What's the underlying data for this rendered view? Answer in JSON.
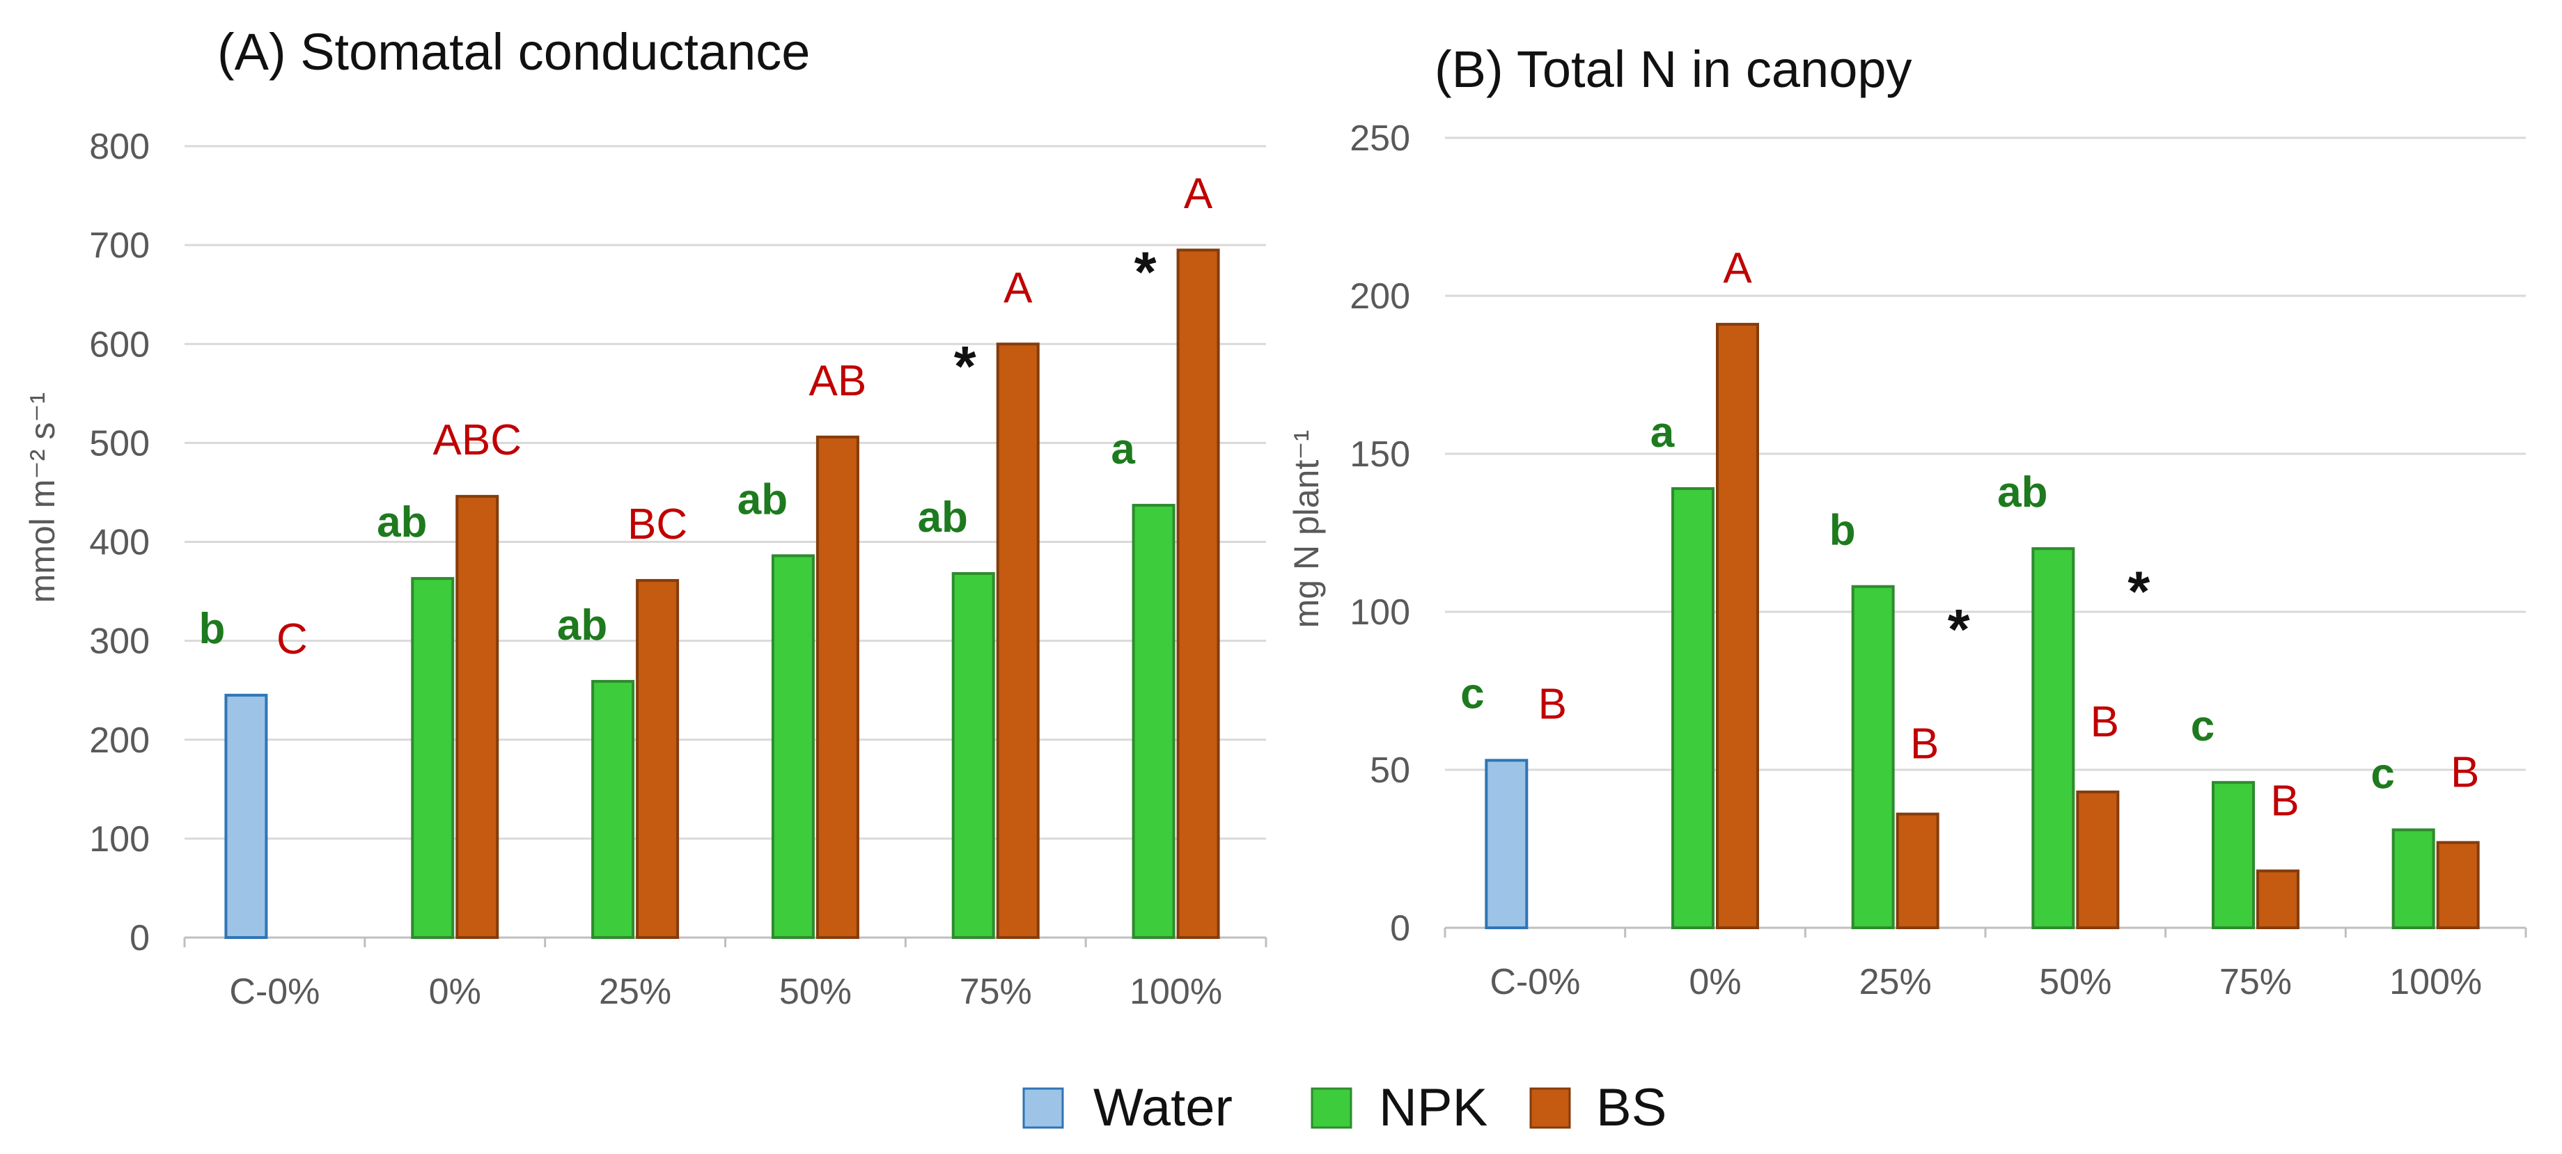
{
  "chart_data": [
    {
      "type": "bar",
      "panel": "A",
      "title": "(A) Stomatal conductance",
      "ylabel": "mmol m⁻² s⁻¹",
      "xlabel": "",
      "ylim": [
        0,
        800
      ],
      "yticks": [
        0,
        100,
        200,
        300,
        400,
        500,
        600,
        700,
        800
      ],
      "categories": [
        "C-0%",
        "0%",
        "25%",
        "50%",
        "75%",
        "100%"
      ],
      "grid": true,
      "series": [
        {
          "name": "Water",
          "values": [
            245,
            null,
            null,
            null,
            null,
            null
          ]
        },
        {
          "name": "NPK",
          "values": [
            null,
            363,
            259,
            386,
            368,
            437
          ]
        },
        {
          "name": "BS",
          "values": [
            null,
            446,
            361,
            506,
            600,
            695
          ]
        }
      ],
      "annotations": {
        "npk_letters": [
          "b",
          "ab",
          "ab",
          "ab",
          "ab",
          "a"
        ],
        "bs_letters": [
          "C",
          "ABC",
          "BC",
          "AB",
          "A",
          "A"
        ],
        "stars": [
          "",
          "",
          "",
          "",
          "*",
          "*"
        ]
      }
    },
    {
      "type": "bar",
      "panel": "B",
      "title": "(B) Total N in canopy",
      "ylabel": "mg N plant⁻¹",
      "xlabel": "",
      "ylim": [
        0,
        250
      ],
      "yticks": [
        0,
        50,
        100,
        150,
        200,
        250
      ],
      "categories": [
        "C-0%",
        "0%",
        "25%",
        "50%",
        "75%",
        "100%"
      ],
      "grid": true,
      "series": [
        {
          "name": "Water",
          "values": [
            53,
            null,
            null,
            null,
            null,
            null
          ]
        },
        {
          "name": "NPK",
          "values": [
            null,
            139,
            108,
            120,
            46,
            31
          ]
        },
        {
          "name": "BS",
          "values": [
            null,
            191,
            36,
            43,
            18,
            27
          ]
        }
      ],
      "annotations": {
        "npk_letters": [
          "c",
          "a",
          "b",
          "ab",
          "c",
          "c"
        ],
        "bs_letters": [
          "B",
          "A",
          "B",
          "B",
          "B",
          "B"
        ],
        "stars": [
          "",
          "",
          "*",
          "*",
          "",
          ""
        ]
      }
    }
  ],
  "legend": {
    "position": "bottom-center",
    "items": [
      {
        "label": "Water",
        "color": "#9dc3e6",
        "border": "#2e75b6"
      },
      {
        "label": "NPK",
        "color": "#3ccc3c",
        "border": "#2e8b2e"
      },
      {
        "label": "BS",
        "color": "#c55a11",
        "border": "#843c0c"
      }
    ]
  },
  "colors": {
    "grid": "#d9d9d9",
    "axis": "#bfbfbf",
    "tick_text": "#595959",
    "npk_letter": "#1e7a1e",
    "bs_letter": "#c00000"
  }
}
